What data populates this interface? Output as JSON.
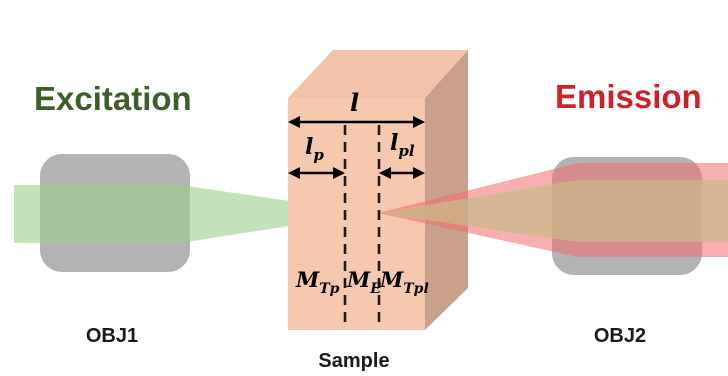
{
  "heading_left": "Excitation",
  "heading_right": "Emission",
  "objective_left_label": "OBJ1",
  "objective_right_label": "OBJ2",
  "sample_label": "Sample",
  "dimension_labels": {
    "total_length": "l",
    "pump_length": "l",
    "pump_length_sub": "p",
    "pl_length": "l",
    "pl_length_sub": "pl"
  },
  "plane_labels": {
    "m_tp": "M",
    "m_tp_sub": "Tp",
    "m_e": "M",
    "m_e_sub": "E",
    "m_tpl": "M",
    "m_tpl_sub": "Tpl"
  },
  "colors": {
    "excitation": "#3d5e2a",
    "emission": "#d0202a",
    "excitation_beam": "#9fd08a",
    "emission_beam": "#f26b6b",
    "sample_front": "#f6c8ae",
    "sample_top": "#f1c0a5",
    "sample_side": "#c9a08c",
    "objective": "#b3b3b3"
  }
}
